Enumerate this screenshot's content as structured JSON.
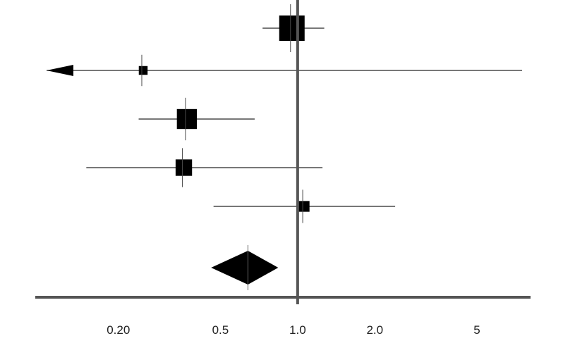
{
  "chart_data": {
    "type": "forest",
    "x_scale": "log",
    "xlim": [
      0.105,
      7.5
    ],
    "reference_value": 1.0,
    "x_ticks": [
      {
        "value": 0.2,
        "label": "0.20"
      },
      {
        "value": 0.5,
        "label": "0.5"
      },
      {
        "value": 1.0,
        "label": "1.0"
      },
      {
        "value": 2.0,
        "label": "2.0"
      },
      {
        "value": 5.0,
        "label": "5"
      }
    ],
    "studies": [
      {
        "estimate": 0.95,
        "lower": 0.73,
        "upper": 1.27,
        "weight": 1.0,
        "arrow_lower": false
      },
      {
        "estimate": 0.25,
        "lower": 0.105,
        "upper": 7.5,
        "weight": 0.12,
        "arrow_lower": true
      },
      {
        "estimate": 0.37,
        "lower": 0.24,
        "upper": 0.68,
        "weight": 0.62,
        "arrow_lower": false
      },
      {
        "estimate": 0.36,
        "lower": 0.15,
        "upper": 1.25,
        "weight": 0.42,
        "arrow_lower": false
      },
      {
        "estimate": 1.06,
        "lower": 0.47,
        "upper": 2.4,
        "weight": 0.18,
        "arrow_lower": false
      }
    ],
    "pooled": {
      "estimate": 0.64,
      "lower": 0.46,
      "upper": 0.84
    }
  },
  "colors": {
    "marks": "#000000",
    "lines": "#4a4a4a",
    "axis": "#555555"
  }
}
